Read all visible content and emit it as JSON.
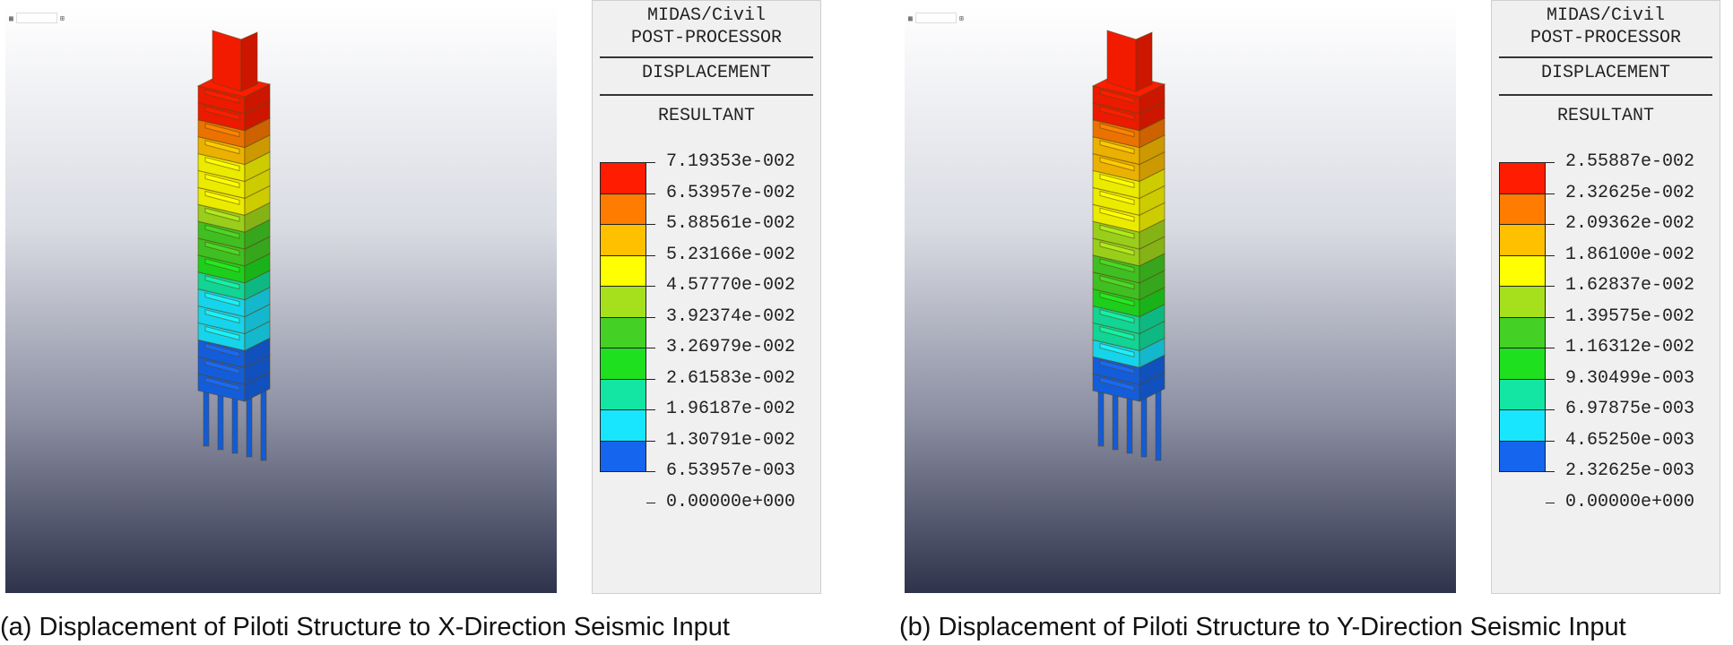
{
  "colors": [
    "#1565ee",
    "#18e6ff",
    "#12e6a2",
    "#1fe01f",
    "#44d024",
    "#a6e01c",
    "#ffff00",
    "#ffc000",
    "#ff7c00",
    "#ff1c00"
  ],
  "panels": [
    {
      "id": "a",
      "legend": {
        "title_line1": "MIDAS/Civil",
        "title_line2": "POST-PROCESSOR",
        "result_type": "DISPLACEMENT",
        "component": "RESULTANT",
        "values": [
          "7.19353e-002",
          "6.53957e-002",
          "5.88561e-002",
          "5.23166e-002",
          "4.57770e-002",
          "3.92374e-002",
          "3.26979e-002",
          "2.61583e-002",
          "1.96187e-002",
          "1.30791e-002",
          "6.53957e-003",
          "0.00000e+000"
        ]
      },
      "caption": "(a) Displacement of Piloti Structure to X-Direction Seismic Input"
    },
    {
      "id": "b",
      "legend": {
        "title_line1": "MIDAS/Civil",
        "title_line2": "POST-PROCESSOR",
        "result_type": "DISPLACEMENT",
        "component": "RESULTANT",
        "values": [
          "2.55887e-002",
          "2.32625e-002",
          "2.09362e-002",
          "1.86100e-002",
          "1.62837e-002",
          "1.39575e-002",
          "1.16312e-002",
          "9.30499e-003",
          "6.97875e-003",
          "4.65250e-003",
          "2.32625e-003",
          "0.00000e+000"
        ]
      },
      "caption": "(b) Displacement of Piloti Structure to Y-Direction Seismic Input"
    }
  ]
}
